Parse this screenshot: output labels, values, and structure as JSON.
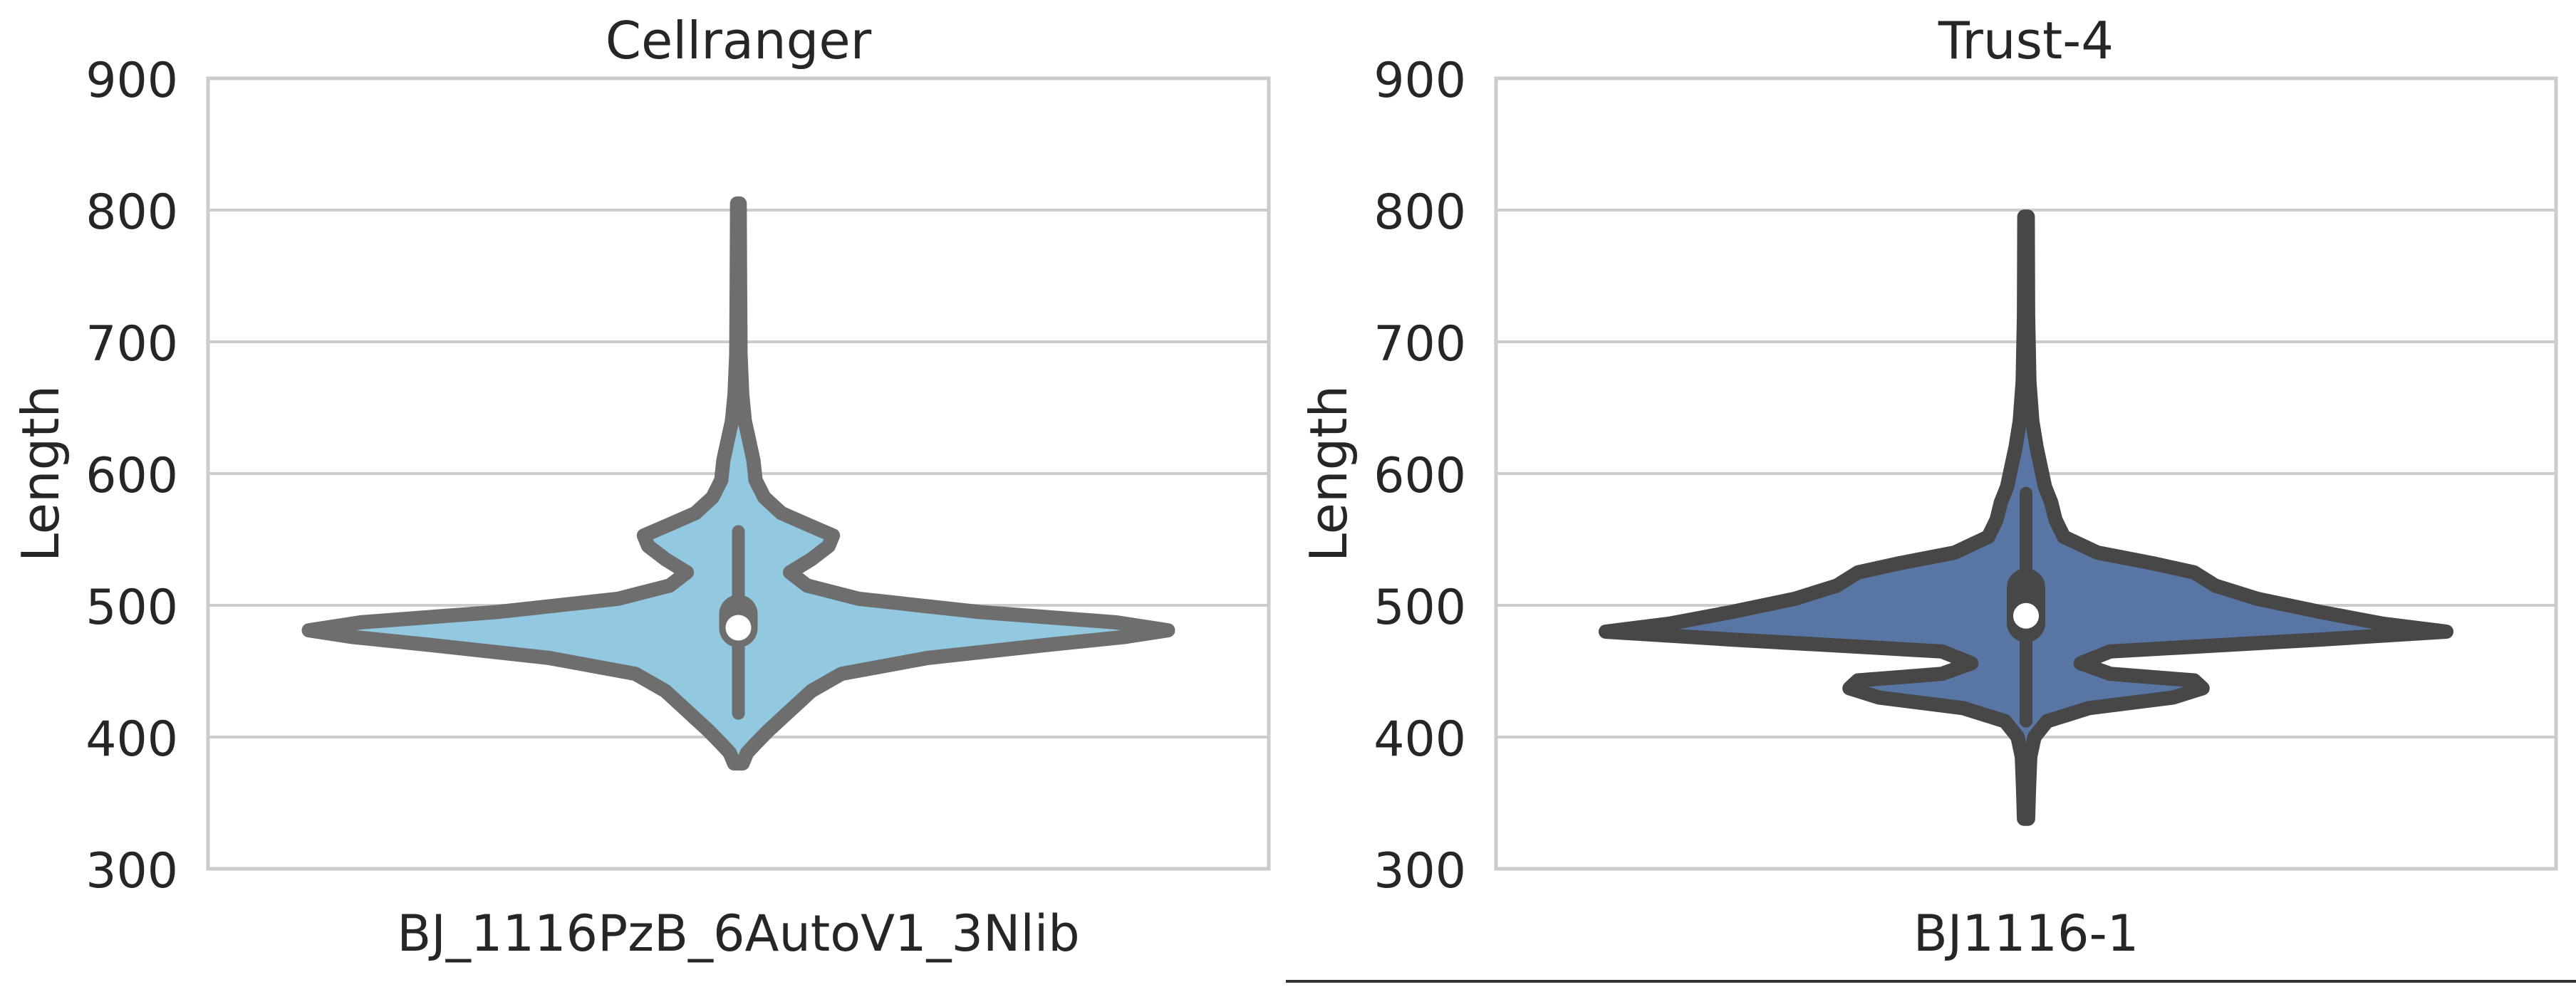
{
  "chart_data": [
    {
      "type": "violin",
      "title": "Cellranger",
      "ylabel": "Length",
      "xlabel": "",
      "categories": [
        "BJ_1116PzB_6AutoV1_3Nlib"
      ],
      "ylim": [
        300,
        900
      ],
      "yticks": [
        300,
        400,
        500,
        600,
        700,
        800,
        900
      ],
      "grid": true,
      "fill_color": "#92c8e0",
      "edge_color": "#6e6e6e",
      "median_color": "#ffffff",
      "median": 483,
      "quartiles": [
        468,
        508
      ],
      "whiskers": [
        418,
        556
      ],
      "range": [
        380,
        805
      ],
      "density": [
        {
          "y": 380,
          "w": 0.01
        },
        {
          "y": 388,
          "w": 0.02
        },
        {
          "y": 395,
          "w": 0.04
        },
        {
          "y": 405,
          "w": 0.07
        },
        {
          "y": 420,
          "w": 0.12
        },
        {
          "y": 435,
          "w": 0.17
        },
        {
          "y": 448,
          "w": 0.24
        },
        {
          "y": 460,
          "w": 0.44
        },
        {
          "y": 470,
          "w": 0.72
        },
        {
          "y": 476,
          "w": 0.9
        },
        {
          "y": 481,
          "w": 1.0
        },
        {
          "y": 487,
          "w": 0.88
        },
        {
          "y": 495,
          "w": 0.56
        },
        {
          "y": 505,
          "w": 0.28
        },
        {
          "y": 515,
          "w": 0.16
        },
        {
          "y": 525,
          "w": 0.12
        },
        {
          "y": 535,
          "w": 0.17
        },
        {
          "y": 545,
          "w": 0.21
        },
        {
          "y": 553,
          "w": 0.22
        },
        {
          "y": 560,
          "w": 0.17
        },
        {
          "y": 570,
          "w": 0.1
        },
        {
          "y": 582,
          "w": 0.06
        },
        {
          "y": 595,
          "w": 0.04
        },
        {
          "y": 610,
          "w": 0.035
        },
        {
          "y": 625,
          "w": 0.025
        },
        {
          "y": 640,
          "w": 0.015
        },
        {
          "y": 660,
          "w": 0.009
        },
        {
          "y": 690,
          "w": 0.005
        },
        {
          "y": 740,
          "w": 0.004
        },
        {
          "y": 805,
          "w": 0.003
        }
      ]
    },
    {
      "type": "violin",
      "title": "Trust-4",
      "ylabel": "Length",
      "xlabel": "",
      "categories": [
        "BJ1116-1"
      ],
      "ylim": [
        300,
        900
      ],
      "yticks": [
        300,
        400,
        500,
        600,
        700,
        800,
        900
      ],
      "grid": true,
      "fill_color": "#5975a4",
      "edge_color": "#474747",
      "median_color": "#ffffff",
      "median": 492,
      "quartiles": [
        472,
        528
      ],
      "whiskers": [
        412,
        585
      ],
      "range": [
        338,
        795
      ],
      "density": [
        {
          "y": 338,
          "w": 0.005
        },
        {
          "y": 360,
          "w": 0.007
        },
        {
          "y": 385,
          "w": 0.01
        },
        {
          "y": 400,
          "w": 0.02
        },
        {
          "y": 412,
          "w": 0.05
        },
        {
          "y": 422,
          "w": 0.15
        },
        {
          "y": 430,
          "w": 0.35
        },
        {
          "y": 437,
          "w": 0.42
        },
        {
          "y": 443,
          "w": 0.4
        },
        {
          "y": 448,
          "w": 0.2
        },
        {
          "y": 456,
          "w": 0.13
        },
        {
          "y": 465,
          "w": 0.2
        },
        {
          "y": 474,
          "w": 0.7
        },
        {
          "y": 480,
          "w": 1.0
        },
        {
          "y": 486,
          "w": 0.85
        },
        {
          "y": 495,
          "w": 0.7
        },
        {
          "y": 505,
          "w": 0.55
        },
        {
          "y": 515,
          "w": 0.45
        },
        {
          "y": 525,
          "w": 0.4
        },
        {
          "y": 532,
          "w": 0.3
        },
        {
          "y": 540,
          "w": 0.17
        },
        {
          "y": 552,
          "w": 0.09
        },
        {
          "y": 565,
          "w": 0.07
        },
        {
          "y": 578,
          "w": 0.06
        },
        {
          "y": 590,
          "w": 0.045
        },
        {
          "y": 605,
          "w": 0.035
        },
        {
          "y": 620,
          "w": 0.025
        },
        {
          "y": 640,
          "w": 0.015
        },
        {
          "y": 670,
          "w": 0.008
        },
        {
          "y": 720,
          "w": 0.005
        },
        {
          "y": 795,
          "w": 0.004
        }
      ]
    }
  ]
}
